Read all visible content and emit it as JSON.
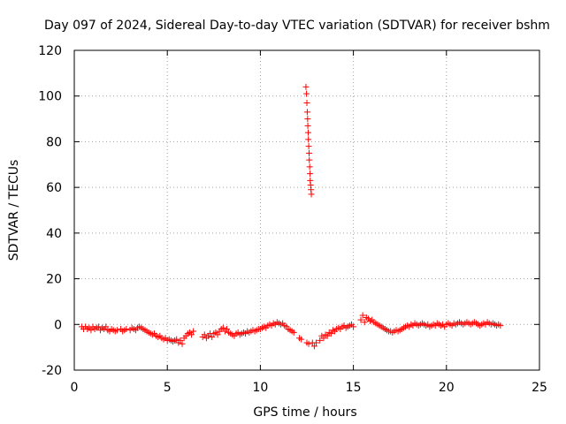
{
  "chart_data": {
    "type": "scatter",
    "title": "Day 097 of 2024, Sidereal Day-to-day VTEC variation (SDTVAR) for receiver bshm",
    "xlabel": "GPS time / hours",
    "ylabel": "SDTVAR / TECUs",
    "xlim": [
      0,
      25
    ],
    "ylim": [
      -20,
      120
    ],
    "xticks": [
      0,
      5,
      10,
      15,
      20,
      25
    ],
    "yticks": [
      -20,
      0,
      20,
      40,
      60,
      80,
      100,
      120
    ],
    "grid": true,
    "marker": "plus",
    "color": "#ff0000",
    "series": [
      {
        "name": "SDTVAR",
        "points": [
          [
            0.4,
            -1
          ],
          [
            0.5,
            -2
          ],
          [
            0.6,
            -1
          ],
          [
            0.7,
            -2
          ],
          [
            0.8,
            -1.5
          ],
          [
            0.9,
            -2.5
          ],
          [
            1.0,
            -1
          ],
          [
            1.1,
            -2
          ],
          [
            1.2,
            -1.5
          ],
          [
            1.3,
            -1
          ],
          [
            1.4,
            -2.5
          ],
          [
            1.5,
            -1.5
          ],
          [
            1.6,
            -2
          ],
          [
            1.7,
            -1
          ],
          [
            1.8,
            -2.5
          ],
          [
            1.9,
            -3
          ],
          [
            2.0,
            -2
          ],
          [
            2.1,
            -2.5
          ],
          [
            2.2,
            -3
          ],
          [
            2.3,
            -2.5
          ],
          [
            2.5,
            -2
          ],
          [
            2.6,
            -3
          ],
          [
            2.7,
            -2.5
          ],
          [
            2.8,
            -2
          ],
          [
            3.0,
            -2.5
          ],
          [
            3.1,
            -1.5
          ],
          [
            3.2,
            -2
          ],
          [
            3.3,
            -2.5
          ],
          [
            3.4,
            -1.5
          ],
          [
            3.5,
            -1
          ],
          [
            3.6,
            -1.5
          ],
          [
            3.7,
            -2
          ],
          [
            3.8,
            -2.5
          ],
          [
            3.9,
            -3
          ],
          [
            4.0,
            -3.5
          ],
          [
            4.1,
            -4
          ],
          [
            4.2,
            -4.5
          ],
          [
            4.3,
            -4
          ],
          [
            4.4,
            -5
          ],
          [
            4.5,
            -5.5
          ],
          [
            4.6,
            -5
          ],
          [
            4.7,
            -6
          ],
          [
            4.8,
            -6.5
          ],
          [
            4.9,
            -6
          ],
          [
            5.0,
            -7
          ],
          [
            5.1,
            -6.5
          ],
          [
            5.2,
            -7
          ],
          [
            5.3,
            -7.5
          ],
          [
            5.4,
            -7
          ],
          [
            5.5,
            -6.5
          ],
          [
            5.6,
            -8
          ],
          [
            5.7,
            -7
          ],
          [
            5.8,
            -8.5
          ],
          [
            5.9,
            -6
          ],
          [
            6.0,
            -5
          ],
          [
            6.1,
            -4
          ],
          [
            6.2,
            -3.5
          ],
          [
            6.3,
            -4.5
          ],
          [
            6.4,
            -3
          ],
          [
            6.9,
            -5.5
          ],
          [
            7.0,
            -4.5
          ],
          [
            7.1,
            -6
          ],
          [
            7.2,
            -5
          ],
          [
            7.3,
            -4
          ],
          [
            7.4,
            -5.5
          ],
          [
            7.5,
            -4
          ],
          [
            7.6,
            -3.5
          ],
          [
            7.7,
            -4.5
          ],
          [
            7.8,
            -3
          ],
          [
            7.9,
            -2
          ],
          [
            8.0,
            -1.5
          ],
          [
            8.1,
            -3
          ],
          [
            8.2,
            -2
          ],
          [
            8.3,
            -3.5
          ],
          [
            8.4,
            -4
          ],
          [
            8.5,
            -4.5
          ],
          [
            8.6,
            -5
          ],
          [
            8.7,
            -4
          ],
          [
            8.8,
            -3.5
          ],
          [
            8.9,
            -4.5
          ],
          [
            9.0,
            -4
          ],
          [
            9.1,
            -3.5
          ],
          [
            9.2,
            -4
          ],
          [
            9.3,
            -3
          ],
          [
            9.4,
            -3.5
          ],
          [
            9.5,
            -3
          ],
          [
            9.6,
            -2.5
          ],
          [
            9.7,
            -3
          ],
          [
            9.8,
            -2.5
          ],
          [
            9.9,
            -2
          ],
          [
            10.0,
            -2
          ],
          [
            10.1,
            -1.5
          ],
          [
            10.2,
            -1
          ],
          [
            10.3,
            -1.5
          ],
          [
            10.4,
            -0.5
          ],
          [
            10.5,
            0
          ],
          [
            10.6,
            -0.5
          ],
          [
            10.7,
            0.5
          ],
          [
            10.8,
            0
          ],
          [
            10.9,
            1
          ],
          [
            11.0,
            0.5
          ],
          [
            11.1,
            0
          ],
          [
            11.2,
            0.5
          ],
          [
            11.3,
            -0.5
          ],
          [
            11.4,
            -1
          ],
          [
            11.5,
            -2
          ],
          [
            11.6,
            -2.5
          ],
          [
            11.7,
            -3
          ],
          [
            11.8,
            -3.5
          ],
          [
            12.1,
            -6
          ],
          [
            12.2,
            -6.5
          ],
          [
            12.5,
            -8
          ],
          [
            12.6,
            -8.5
          ],
          [
            12.8,
            -8
          ],
          [
            12.9,
            -9.5
          ],
          [
            13.0,
            -8
          ],
          [
            12.45,
            104
          ],
          [
            12.48,
            101
          ],
          [
            12.5,
            97
          ],
          [
            12.52,
            93
          ],
          [
            12.54,
            90
          ],
          [
            12.55,
            87
          ],
          [
            12.57,
            84
          ],
          [
            12.58,
            81
          ],
          [
            12.6,
            78
          ],
          [
            12.62,
            75
          ],
          [
            12.63,
            72
          ],
          [
            12.65,
            69
          ],
          [
            12.67,
            66
          ],
          [
            12.68,
            63
          ],
          [
            12.7,
            61
          ],
          [
            12.72,
            59
          ],
          [
            12.74,
            57
          ],
          [
            13.2,
            -7
          ],
          [
            13.3,
            -5
          ],
          [
            13.4,
            -6
          ],
          [
            13.5,
            -4.5
          ],
          [
            13.6,
            -5
          ],
          [
            13.7,
            -3.5
          ],
          [
            13.8,
            -4
          ],
          [
            13.9,
            -2.5
          ],
          [
            14.0,
            -3
          ],
          [
            14.1,
            -2
          ],
          [
            14.2,
            -1.5
          ],
          [
            14.3,
            -2
          ],
          [
            14.4,
            -1
          ],
          [
            14.5,
            -0.5
          ],
          [
            14.6,
            -1.5
          ],
          [
            14.7,
            -1
          ],
          [
            14.8,
            -0.5
          ],
          [
            14.9,
            0
          ],
          [
            15.0,
            -1
          ],
          [
            15.4,
            2
          ],
          [
            15.5,
            4
          ],
          [
            15.6,
            1
          ],
          [
            15.7,
            3
          ],
          [
            15.8,
            2.5
          ],
          [
            15.9,
            1.5
          ],
          [
            16.0,
            2
          ],
          [
            16.1,
            1
          ],
          [
            16.2,
            0.5
          ],
          [
            16.3,
            0
          ],
          [
            16.4,
            -0.5
          ],
          [
            16.5,
            -1
          ],
          [
            16.6,
            -1.5
          ],
          [
            16.7,
            -2
          ],
          [
            16.8,
            -2.5
          ],
          [
            16.9,
            -3
          ],
          [
            17.0,
            -3
          ],
          [
            17.1,
            -3.5
          ],
          [
            17.2,
            -3
          ],
          [
            17.3,
            -2.5
          ],
          [
            17.4,
            -3
          ],
          [
            17.5,
            -2.5
          ],
          [
            17.6,
            -2
          ],
          [
            17.7,
            -1.5
          ],
          [
            17.8,
            -1
          ],
          [
            17.9,
            -0.5
          ],
          [
            18.0,
            -1
          ],
          [
            18.1,
            0
          ],
          [
            18.2,
            -0.5
          ],
          [
            18.3,
            0.5
          ],
          [
            18.4,
            0
          ],
          [
            18.5,
            -0.5
          ],
          [
            18.6,
            0
          ],
          [
            18.7,
            0.5
          ],
          [
            18.8,
            0
          ],
          [
            18.9,
            -0.5
          ],
          [
            19.0,
            0
          ],
          [
            19.1,
            -1
          ],
          [
            19.2,
            -0.5
          ],
          [
            19.3,
            0
          ],
          [
            19.4,
            -0.5
          ],
          [
            19.5,
            0.5
          ],
          [
            19.6,
            0
          ],
          [
            19.7,
            -0.5
          ],
          [
            19.8,
            0
          ],
          [
            19.9,
            -1
          ],
          [
            20.0,
            0
          ],
          [
            20.1,
            0.5
          ],
          [
            20.2,
            0
          ],
          [
            20.3,
            -0.5
          ],
          [
            20.4,
            0.5
          ],
          [
            20.5,
            0
          ],
          [
            20.6,
            0.5
          ],
          [
            20.7,
            1
          ],
          [
            20.8,
            0.5
          ],
          [
            20.9,
            0
          ],
          [
            21.0,
            0.5
          ],
          [
            21.1,
            1
          ],
          [
            21.2,
            0.5
          ],
          [
            21.3,
            0
          ],
          [
            21.4,
            0.5
          ],
          [
            21.5,
            1
          ],
          [
            21.6,
            0.5
          ],
          [
            21.7,
            0
          ],
          [
            21.8,
            -0.5
          ],
          [
            21.9,
            0
          ],
          [
            22.0,
            0.5
          ],
          [
            22.1,
            0
          ],
          [
            22.2,
            1
          ],
          [
            22.3,
            0.5
          ],
          [
            22.4,
            0
          ],
          [
            22.5,
            0.5
          ],
          [
            22.6,
            0
          ],
          [
            22.7,
            -0.5
          ],
          [
            22.8,
            0
          ],
          [
            22.9,
            -0.5
          ]
        ]
      }
    ]
  }
}
